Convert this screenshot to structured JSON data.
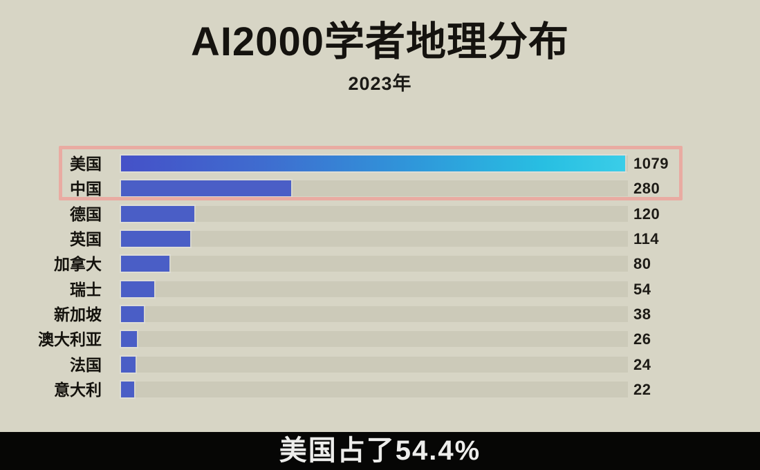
{
  "page": {
    "background_color": "#d7d5c5",
    "title": "AI2000学者地理分布",
    "subtitle": "2023年"
  },
  "caption": {
    "text": "美国占了54.4%",
    "background_color": "#060605",
    "text_color": "#ededeb"
  },
  "chart_data": {
    "type": "bar",
    "orientation": "horizontal",
    "title": "AI2000学者地理分布",
    "subtitle": "2023年",
    "categories": [
      "美国",
      "中国",
      "德国",
      "英国",
      "加拿大",
      "瑞士",
      "新加坡",
      "澳大利亚",
      "法国",
      "意大利"
    ],
    "values": [
      1079,
      280,
      120,
      114,
      80,
      54,
      38,
      26,
      24,
      22
    ],
    "value_labels": [
      "1079",
      "280",
      "120",
      "114",
      "80",
      "54",
      "38",
      "26",
      "24",
      "22"
    ],
    "bar_color": "#4a5ec6",
    "leader_bar_gradient": [
      "#4551c8",
      "#2f97da",
      "#3acde8"
    ],
    "grid": false,
    "legend": false,
    "highlight": {
      "rows": [
        0,
        1
      ],
      "labels": [
        "美国",
        "中国"
      ],
      "border_color": "#e9aba2"
    }
  }
}
